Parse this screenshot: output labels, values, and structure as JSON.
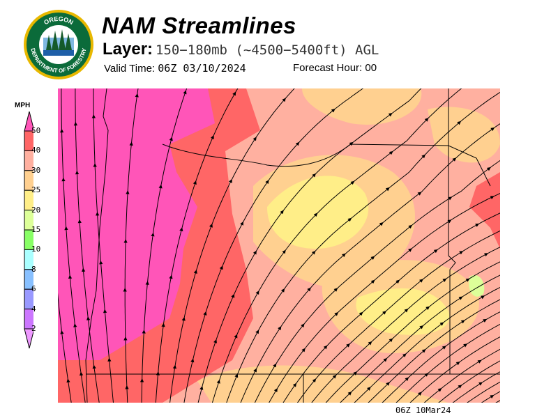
{
  "header": {
    "title": "NAM Streamlines",
    "layer_label": "Layer:",
    "layer_value": "150−180mb (~4500−5400ft) AGL",
    "valid_time_label": "Valid Time:",
    "valid_time": "06Z 03/10/2024",
    "forecast_hour_label": "Forecast Hour:",
    "forecast_hour": "00",
    "logo_text": [
      "OREGON",
      "DEPARTMENT OF FORESTRY"
    ]
  },
  "footer": {
    "timestamp": "06Z 10Mar24"
  },
  "chart_data": {
    "type": "heatmap",
    "title": "NAM Streamlines",
    "overlay": "streamlines",
    "legend": {
      "unit": "MPH",
      "placement": "left",
      "ticks": [
        "2",
        "4",
        "6",
        "8",
        "10",
        "15",
        "20",
        "25",
        "30",
        "40",
        "50"
      ],
      "bins": [
        {
          "range": "<2",
          "color": "#ee99ff"
        },
        {
          "range": "2-4",
          "color": "#cc77ff"
        },
        {
          "range": "4-6",
          "color": "#9999ff"
        },
        {
          "range": "6-8",
          "color": "#88c0ff"
        },
        {
          "range": "8-10",
          "color": "#aaffff"
        },
        {
          "range": "10-15",
          "color": "#88ff66"
        },
        {
          "range": "15-20",
          "color": "#ddff99"
        },
        {
          "range": "20-25",
          "color": "#ffee88"
        },
        {
          "range": "25-30",
          "color": "#ffd090"
        },
        {
          "range": "30-40",
          "color": "#ffb0a0"
        },
        {
          "range": "40-50",
          "color": "#ff6666"
        },
        {
          "range": ">50",
          "color": "#ff55b8"
        }
      ]
    },
    "flow_direction": "southwest to northeast; near-southerly along the coast"
  }
}
